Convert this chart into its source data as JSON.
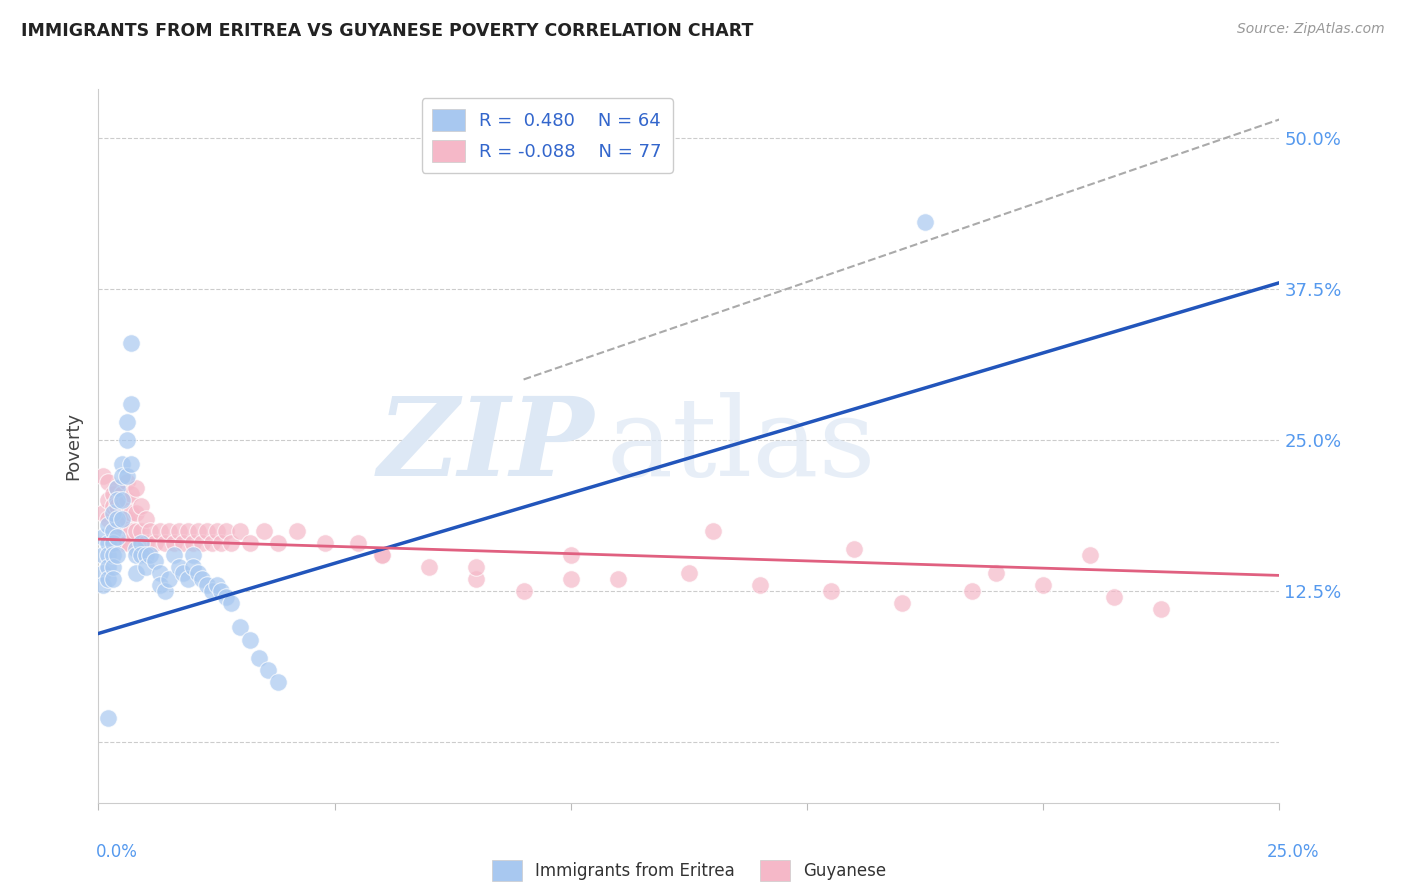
{
  "title": "IMMIGRANTS FROM ERITREA VS GUYANESE POVERTY CORRELATION CHART",
  "source": "Source: ZipAtlas.com",
  "ylabel": "Poverty",
  "yticks": [
    0.0,
    0.125,
    0.25,
    0.375,
    0.5
  ],
  "ytick_labels": [
    "",
    "12.5%",
    "25.0%",
    "37.5%",
    "50.0%"
  ],
  "xlim": [
    0.0,
    0.25
  ],
  "ylim": [
    -0.05,
    0.54
  ],
  "legend_R1": "0.480",
  "legend_N1": "64",
  "legend_R2": "-0.088",
  "legend_N2": "77",
  "series1_color": "#a8c8f0",
  "series2_color": "#f5b8c8",
  "line1_color": "#2255bb",
  "line2_color": "#e06080",
  "watermark_color": "#dde8f5",
  "dashed_line_color": "#aaaaaa",
  "line1_x": [
    0.0,
    0.25
  ],
  "line1_y": [
    0.09,
    0.38
  ],
  "line2_x": [
    0.0,
    0.25
  ],
  "line2_y": [
    0.168,
    0.138
  ],
  "diag_line_x": [
    0.09,
    0.25
  ],
  "diag_line_y": [
    0.3,
    0.515
  ],
  "scatter1_x": [
    0.001,
    0.001,
    0.001,
    0.001,
    0.002,
    0.002,
    0.002,
    0.002,
    0.002,
    0.003,
    0.003,
    0.003,
    0.003,
    0.003,
    0.003,
    0.004,
    0.004,
    0.004,
    0.004,
    0.004,
    0.005,
    0.005,
    0.005,
    0.005,
    0.006,
    0.006,
    0.006,
    0.007,
    0.007,
    0.007,
    0.008,
    0.008,
    0.008,
    0.009,
    0.009,
    0.01,
    0.01,
    0.011,
    0.012,
    0.013,
    0.013,
    0.014,
    0.015,
    0.016,
    0.017,
    0.018,
    0.019,
    0.02,
    0.02,
    0.021,
    0.022,
    0.023,
    0.024,
    0.025,
    0.026,
    0.027,
    0.028,
    0.03,
    0.032,
    0.034,
    0.036,
    0.038,
    0.175,
    0.002
  ],
  "scatter1_y": [
    0.17,
    0.155,
    0.14,
    0.13,
    0.18,
    0.165,
    0.155,
    0.145,
    0.135,
    0.19,
    0.175,
    0.165,
    0.155,
    0.145,
    0.135,
    0.21,
    0.2,
    0.185,
    0.17,
    0.155,
    0.23,
    0.22,
    0.2,
    0.185,
    0.265,
    0.25,
    0.22,
    0.33,
    0.28,
    0.23,
    0.16,
    0.155,
    0.14,
    0.165,
    0.155,
    0.155,
    0.145,
    0.155,
    0.15,
    0.14,
    0.13,
    0.125,
    0.135,
    0.155,
    0.145,
    0.14,
    0.135,
    0.155,
    0.145,
    0.14,
    0.135,
    0.13,
    0.125,
    0.13,
    0.125,
    0.12,
    0.115,
    0.095,
    0.085,
    0.07,
    0.06,
    0.05,
    0.43,
    0.02
  ],
  "scatter2_x": [
    0.001,
    0.001,
    0.002,
    0.002,
    0.002,
    0.003,
    0.003,
    0.003,
    0.003,
    0.004,
    0.004,
    0.004,
    0.004,
    0.005,
    0.005,
    0.005,
    0.005,
    0.006,
    0.006,
    0.006,
    0.006,
    0.007,
    0.007,
    0.007,
    0.008,
    0.008,
    0.008,
    0.009,
    0.009,
    0.01,
    0.01,
    0.011,
    0.012,
    0.013,
    0.014,
    0.015,
    0.016,
    0.017,
    0.018,
    0.019,
    0.02,
    0.021,
    0.022,
    0.023,
    0.024,
    0.025,
    0.026,
    0.027,
    0.028,
    0.03,
    0.032,
    0.035,
    0.038,
    0.042,
    0.048,
    0.055,
    0.06,
    0.07,
    0.08,
    0.09,
    0.1,
    0.11,
    0.125,
    0.14,
    0.155,
    0.17,
    0.185,
    0.2,
    0.215,
    0.225,
    0.13,
    0.16,
    0.19,
    0.21,
    0.06,
    0.08,
    0.1
  ],
  "scatter2_y": [
    0.22,
    0.19,
    0.215,
    0.2,
    0.185,
    0.205,
    0.195,
    0.175,
    0.165,
    0.21,
    0.195,
    0.18,
    0.165,
    0.205,
    0.195,
    0.18,
    0.165,
    0.215,
    0.2,
    0.185,
    0.165,
    0.205,
    0.19,
    0.175,
    0.21,
    0.19,
    0.175,
    0.195,
    0.175,
    0.185,
    0.165,
    0.175,
    0.165,
    0.175,
    0.165,
    0.175,
    0.165,
    0.175,
    0.165,
    0.175,
    0.165,
    0.175,
    0.165,
    0.175,
    0.165,
    0.175,
    0.165,
    0.175,
    0.165,
    0.175,
    0.165,
    0.175,
    0.165,
    0.175,
    0.165,
    0.165,
    0.155,
    0.145,
    0.135,
    0.125,
    0.155,
    0.135,
    0.14,
    0.13,
    0.125,
    0.115,
    0.125,
    0.13,
    0.12,
    0.11,
    0.175,
    0.16,
    0.14,
    0.155,
    0.155,
    0.145,
    0.135
  ]
}
